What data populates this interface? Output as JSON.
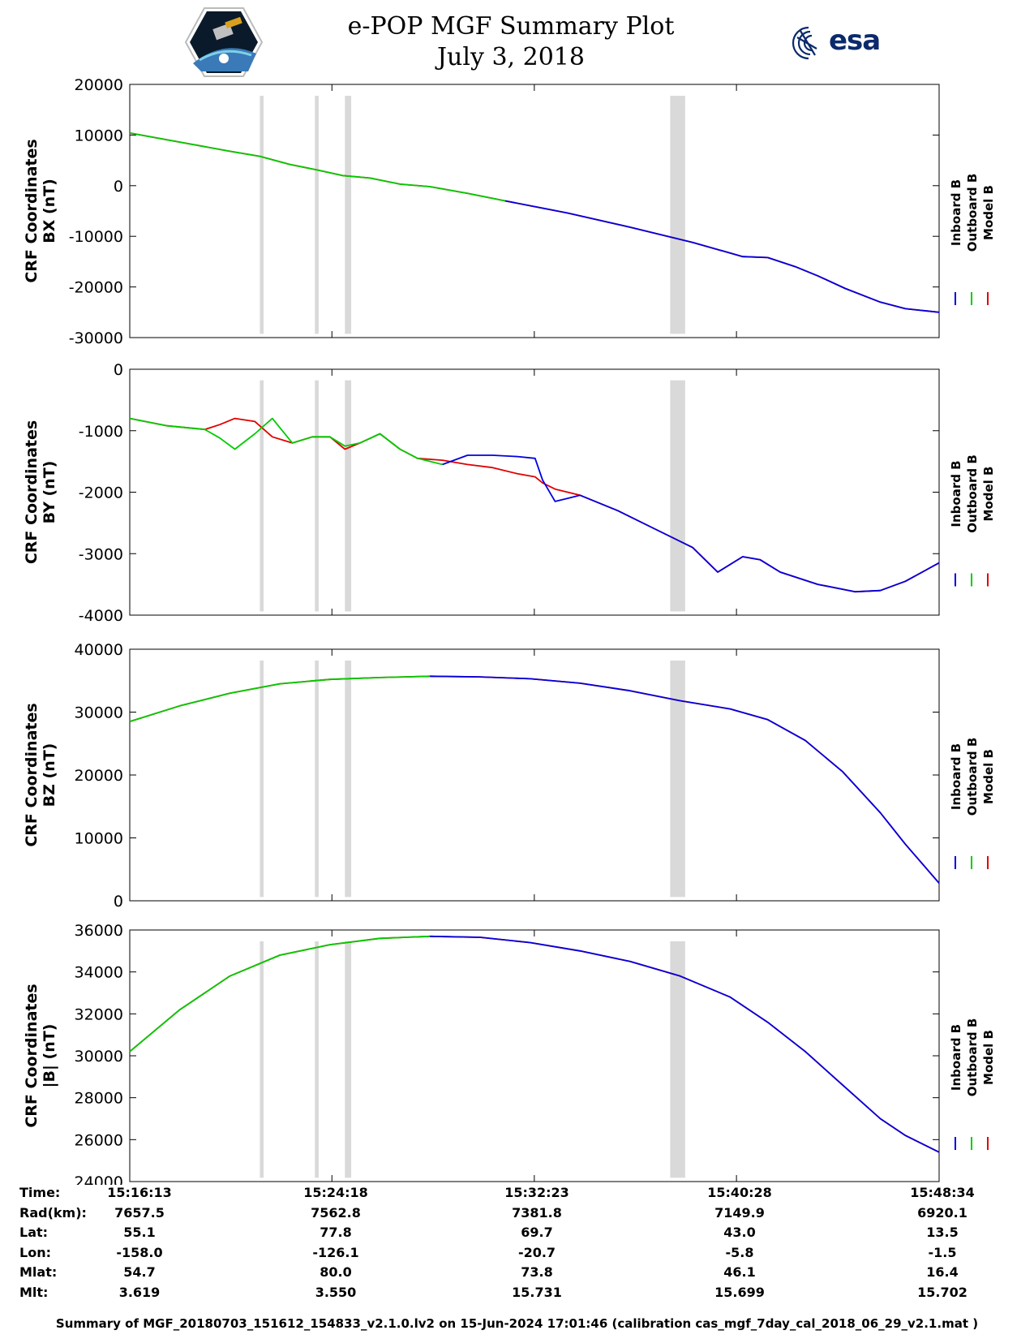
{
  "header": {
    "title_line1": "e-POP MGF Summary Plot",
    "title_line2": "July 3, 2018",
    "left_logo": "cassiope-mission-logo",
    "right_logo": "esa-logo",
    "right_logo_text": "esa"
  },
  "colors": {
    "inboard": "#0000e0",
    "outboard": "#00cc00",
    "model": "#e00000",
    "gap_shading": "#d9d9d9"
  },
  "chart_data": [
    {
      "type": "line",
      "ylabel_line1": "CRF Coordinates",
      "ylabel_line2": "BX (nT)",
      "xlim": [
        0,
        32.35
      ],
      "ylim": [
        -30000,
        20000
      ],
      "yticks": [
        -30000,
        -20000,
        -10000,
        0,
        10000,
        20000
      ],
      "ytick_labels": [
        "-30000",
        "-20000",
        "-10000",
        "0",
        "10000",
        "20000"
      ],
      "legend": [
        "Inboard B",
        "Outboard B",
        "Model B"
      ],
      "x": [
        0,
        2,
        4,
        5.2,
        6.4,
        7.5,
        8.5,
        9.6,
        10.8,
        12,
        13.5,
        15,
        17.5,
        20,
        22.5,
        24.5,
        25.5,
        26.6,
        27.5,
        28.6,
        30,
        31,
        32.35
      ],
      "series": [
        {
          "name": "Outboard B",
          "y": [
            10400,
            8600,
            6800,
            5800,
            4200,
            3100,
            2000,
            1500,
            300,
            -200,
            -1500,
            -3000,
            null,
            null,
            null,
            null,
            null,
            null,
            null,
            null,
            null,
            null,
            null
          ]
        },
        {
          "name": "Inboard B",
          "y": [
            null,
            null,
            null,
            null,
            null,
            null,
            null,
            null,
            null,
            null,
            null,
            -3000,
            -5400,
            -8200,
            -11200,
            -14000,
            -14200,
            -16000,
            -17800,
            -20300,
            -23000,
            -24300,
            -25000
          ]
        },
        {
          "name": "Model B",
          "y": [
            10400,
            8600,
            6800,
            5800,
            4200,
            3100,
            2000,
            1500,
            300,
            -200,
            -1500,
            -3000,
            -5400,
            -8200,
            -11200,
            -14000,
            -14200,
            -16000,
            -17800,
            -20300,
            -23000,
            -24300,
            -25000
          ]
        }
      ]
    },
    {
      "type": "line",
      "ylabel_line1": "CRF Coordinates",
      "ylabel_line2": "BY (nT)",
      "xlim": [
        0,
        32.35
      ],
      "ylim": [
        -4000,
        0
      ],
      "yticks": [
        -4000,
        -3000,
        -2000,
        -1000,
        0
      ],
      "ytick_labels": [
        "-4000",
        "-3000",
        "-2000",
        "-1000",
        "0"
      ],
      "legend": [
        "Inboard B",
        "Outboard B",
        "Model B"
      ],
      "x": [
        0,
        1.5,
        3,
        3.6,
        4.2,
        5,
        5.7,
        6.5,
        7.3,
        8,
        8.6,
        9.2,
        10,
        10.8,
        11.5,
        12.5,
        13.5,
        14.5,
        15.5,
        16.2,
        16.5,
        17,
        17.5,
        18,
        19.5,
        21,
        22.5,
        23.5,
        24.5,
        25.2,
        26,
        27.5,
        29,
        30,
        31,
        32.35
      ],
      "series": [
        {
          "name": "Outboard B",
          "y": [
            -800,
            -920,
            -980,
            -1120,
            -1300,
            -1050,
            -800,
            -1200,
            -1100,
            -1100,
            -1250,
            -1200,
            -1050,
            -1300,
            -1450,
            -1550,
            null,
            null,
            null,
            null,
            null,
            null,
            null,
            null,
            null,
            null,
            null,
            null,
            null,
            null,
            null,
            null,
            null,
            null,
            null,
            null
          ]
        },
        {
          "name": "Inboard B",
          "y": [
            null,
            null,
            null,
            null,
            null,
            null,
            null,
            null,
            null,
            null,
            null,
            null,
            null,
            null,
            null,
            -1550,
            -1400,
            -1400,
            -1420,
            -1450,
            -1800,
            -2150,
            -2100,
            -2050,
            -2300,
            -2600,
            -2900,
            -3300,
            -3050,
            -3100,
            -3300,
            -3500,
            -3620,
            -3600,
            -3450,
            -3150
          ]
        },
        {
          "name": "Model B",
          "y": [
            -800,
            -920,
            -980,
            -900,
            -800,
            -850,
            -1100,
            -1200,
            -1100,
            -1100,
            -1300,
            -1200,
            -1050,
            -1300,
            -1450,
            -1480,
            -1550,
            -1600,
            -1700,
            -1750,
            -1850,
            -1950,
            -2000,
            -2050,
            -2300,
            -2600,
            -2900,
            -3300,
            -3050,
            -3100,
            -3300,
            -3500,
            -3620,
            -3600,
            -3450,
            -3150
          ]
        }
      ]
    },
    {
      "type": "line",
      "ylabel_line1": "CRF Coordinates",
      "ylabel_line2": "BZ (nT)",
      "xlim": [
        0,
        32.35
      ],
      "ylim": [
        0,
        40000
      ],
      "yticks": [
        0,
        10000,
        20000,
        30000,
        40000
      ],
      "ytick_labels": [
        "0",
        "10000",
        "20000",
        "30000",
        "40000"
      ],
      "legend": [
        "Inboard B",
        "Outboard B",
        "Model B"
      ],
      "x": [
        0,
        2,
        4,
        6,
        8,
        10,
        12,
        14,
        16,
        18,
        20,
        22,
        24,
        25.5,
        27,
        28.5,
        30,
        31,
        32.35
      ],
      "series": [
        {
          "name": "Outboard B",
          "y": [
            28500,
            31000,
            33000,
            34500,
            35200,
            35500,
            35700,
            null,
            null,
            null,
            null,
            null,
            null,
            null,
            null,
            null,
            null,
            null,
            null
          ]
        },
        {
          "name": "Inboard B",
          "y": [
            null,
            null,
            null,
            null,
            null,
            null,
            35700,
            35600,
            35300,
            34600,
            33400,
            31800,
            30500,
            28800,
            25500,
            20500,
            14000,
            9000,
            2800
          ]
        },
        {
          "name": "Model B",
          "y": [
            28500,
            31000,
            33000,
            34500,
            35200,
            35500,
            35700,
            35600,
            35300,
            34600,
            33400,
            31800,
            30500,
            28800,
            25500,
            20500,
            14000,
            9000,
            2800
          ]
        }
      ]
    },
    {
      "type": "line",
      "ylabel_line1": "CRF Coordinates",
      "ylabel_line2": "|B| (nT)",
      "xlim": [
        0,
        32.35
      ],
      "ylim": [
        24000,
        36000
      ],
      "yticks": [
        24000,
        26000,
        28000,
        30000,
        32000,
        34000,
        36000
      ],
      "ytick_labels": [
        "24000",
        "26000",
        "28000",
        "30000",
        "32000",
        "34000",
        "36000"
      ],
      "legend": [
        "Inboard B",
        "Outboard B",
        "Model B"
      ],
      "x": [
        0,
        2,
        4,
        6,
        8,
        10,
        12,
        14,
        16,
        18,
        20,
        22,
        24,
        25.5,
        27,
        28.5,
        30,
        31,
        32.35
      ],
      "series": [
        {
          "name": "Outboard B",
          "y": [
            30200,
            32200,
            33800,
            34800,
            35300,
            35600,
            35700,
            null,
            null,
            null,
            null,
            null,
            null,
            null,
            null,
            null,
            null,
            null,
            null
          ]
        },
        {
          "name": "Inboard B",
          "y": [
            null,
            null,
            null,
            null,
            null,
            null,
            35700,
            35650,
            35400,
            35000,
            34500,
            33800,
            32800,
            31600,
            30200,
            28600,
            27000,
            26200,
            25400
          ]
        },
        {
          "name": "Model B",
          "y": [
            30200,
            32200,
            33800,
            34800,
            35300,
            35600,
            35700,
            35650,
            35400,
            35000,
            34500,
            33800,
            32800,
            31600,
            30200,
            28600,
            27000,
            26200,
            25400
          ]
        }
      ]
    }
  ],
  "gaps": [
    [
      5.2,
      5.35
    ],
    [
      7.4,
      7.55
    ],
    [
      8.6,
      8.85
    ],
    [
      21.6,
      22.2
    ]
  ],
  "x_tick_minutes": [
    0,
    8.08,
    16.17,
    24.25,
    32.35
  ],
  "ephemeris": {
    "labels": [
      "Time:",
      "Rad(km):",
      "Lat:",
      "Lon:",
      "Mlat:",
      "Mlt:"
    ],
    "columns": [
      [
        "15:16:13",
        "7657.5",
        "55.1",
        "-158.0",
        "54.7",
        "3.619"
      ],
      [
        "15:24:18",
        "7562.8",
        "77.8",
        "-126.1",
        "80.0",
        "3.550"
      ],
      [
        "15:32:23",
        "7381.8",
        "69.7",
        "-20.7",
        "73.8",
        "15.731"
      ],
      [
        "15:40:28",
        "7149.9",
        "43.0",
        "-5.8",
        "46.1",
        "15.699"
      ],
      [
        "15:48:34",
        "6920.1",
        "13.5",
        "-1.5",
        "16.4",
        "15.702"
      ]
    ]
  },
  "footer": "Summary of MGF_20180703_151612_154833_v2.1.0.lv2 on 15-Jun-2024 17:01:46 (calibration cas_mgf_7day_cal_2018_06_29_v2.1.mat )"
}
